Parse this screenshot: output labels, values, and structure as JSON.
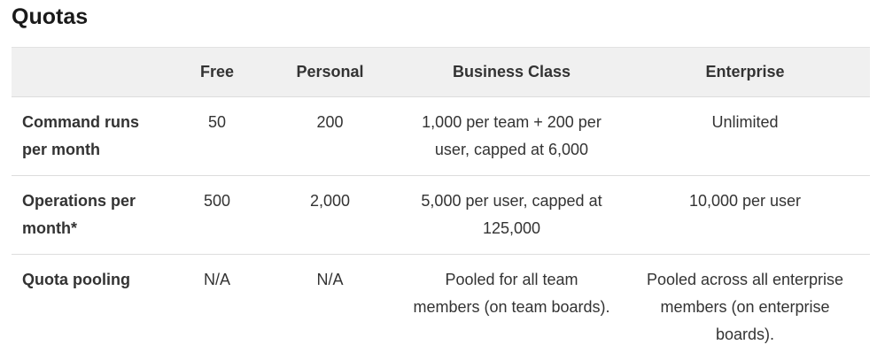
{
  "title": "Quotas",
  "table": {
    "headers": [
      "",
      "Free",
      "Personal",
      "Business Class",
      "Enterprise"
    ],
    "rows": [
      [
        "Command runs per month",
        "50",
        "200",
        "1,000 per team + 200 per user, capped at 6,000",
        "Unlimited"
      ],
      [
        "Operations per month*",
        "500",
        "2,000",
        "5,000 per user, capped at 125,000",
        "10,000 per user"
      ],
      [
        "Quota pooling",
        "N/A",
        "N/A",
        "Pooled for all team members (on team boards).",
        "Pooled across all enterprise members (on enterprise boards)."
      ]
    ]
  }
}
